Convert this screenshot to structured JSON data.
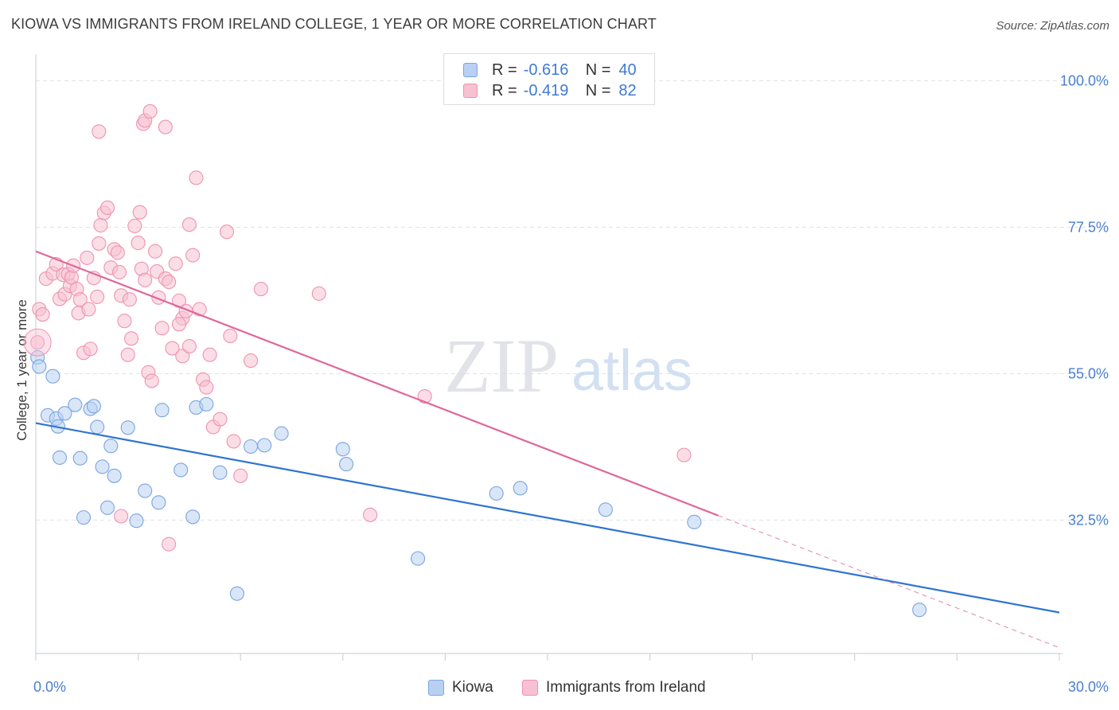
{
  "title": "KIOWA VS IMMIGRANTS FROM IRELAND COLLEGE, 1 YEAR OR MORE CORRELATION CHART",
  "source": "Source: ZipAtlas.com",
  "watermark": {
    "zip": "ZIP",
    "atlas": "atlas"
  },
  "legend": {
    "kiowa": {
      "r_label": "R =",
      "r_value": "-0.616",
      "n_label": "N =",
      "n_value": "40"
    },
    "ireland": {
      "r_label": "R =",
      "r_value": "-0.419",
      "n_label": "N =",
      "n_value": "82"
    }
  },
  "bottom_legend": {
    "kiowa": "Kiowa",
    "ireland": "Immigrants from Ireland"
  },
  "colors": {
    "kiowa_fill": "#b8d1f3",
    "kiowa_stroke": "#7aa5e0",
    "kiowa_line": "#2f74d0",
    "ireland_fill": "#f7c1d2",
    "ireland_stroke": "#ee93b0",
    "ireland_line": "#e0679a",
    "tick": "#4a7fd0",
    "grid": "#dde3ea"
  },
  "chart_data": {
    "type": "scatter",
    "title": "KIOWA VS IMMIGRANTS FROM IRELAND COLLEGE, 1 YEAR OR MORE CORRELATION CHART",
    "xlabel": "",
    "ylabel": "College, 1 year or more",
    "xlim": [
      0,
      30
    ],
    "ylim": [
      12,
      103
    ],
    "x_tick_labels": [
      "0.0%",
      "30.0%"
    ],
    "y_ticks": [
      32.5,
      55.0,
      77.5,
      100.0
    ],
    "y_tick_labels": [
      "32.5%",
      "55.0%",
      "77.5%",
      "100.0%"
    ],
    "grid": true,
    "series": [
      {
        "name": "Kiowa",
        "r": -0.616,
        "n": 40,
        "trend": {
          "x": [
            0,
            30
          ],
          "y": [
            47.4,
            18.3
          ]
        },
        "points": [
          [
            0.05,
            57.5
          ],
          [
            0.1,
            56.1
          ],
          [
            0.5,
            54.6
          ],
          [
            0.35,
            48.6
          ],
          [
            0.6,
            48.1
          ],
          [
            0.85,
            48.9
          ],
          [
            1.15,
            50.2
          ],
          [
            1.6,
            49.6
          ],
          [
            1.7,
            50.0
          ],
          [
            1.8,
            46.8
          ],
          [
            3.7,
            49.4
          ],
          [
            4.7,
            49.8
          ],
          [
            5.0,
            50.3
          ],
          [
            2.7,
            46.7
          ],
          [
            0.65,
            46.9
          ],
          [
            2.2,
            43.9
          ],
          [
            0.7,
            42.1
          ],
          [
            1.3,
            42.0
          ],
          [
            1.95,
            40.7
          ],
          [
            2.3,
            39.3
          ],
          [
            4.25,
            40.2
          ],
          [
            5.4,
            39.8
          ],
          [
            6.3,
            43.8
          ],
          [
            6.7,
            44.0
          ],
          [
            7.2,
            45.8
          ],
          [
            9.0,
            43.4
          ],
          [
            9.1,
            41.1
          ],
          [
            3.2,
            37.0
          ],
          [
            3.6,
            35.2
          ],
          [
            2.1,
            34.4
          ],
          [
            1.4,
            32.9
          ],
          [
            2.95,
            32.4
          ],
          [
            4.6,
            33.0
          ],
          [
            13.5,
            36.6
          ],
          [
            14.2,
            37.4
          ],
          [
            16.7,
            34.1
          ],
          [
            19.3,
            32.2
          ],
          [
            11.2,
            26.6
          ],
          [
            5.9,
            21.2
          ],
          [
            25.9,
            18.7
          ]
        ]
      },
      {
        "name": "Immigrants from Ireland",
        "r": -0.419,
        "n": 82,
        "trend": {
          "x": [
            0,
            20
          ],
          "y": [
            73.8,
            33.2
          ]
        },
        "trend_extension": {
          "x": [
            20,
            30
          ],
          "y": [
            33.2,
            12.9
          ]
        },
        "points": [
          [
            0.05,
            59.8
          ],
          [
            0.1,
            64.9
          ],
          [
            0.2,
            64.1
          ],
          [
            0.3,
            69.6
          ],
          [
            0.5,
            70.4
          ],
          [
            0.6,
            71.8
          ],
          [
            0.7,
            66.5
          ],
          [
            0.8,
            70.2
          ],
          [
            0.85,
            67.2
          ],
          [
            0.95,
            70.3
          ],
          [
            1.0,
            68.5
          ],
          [
            1.05,
            69.8
          ],
          [
            1.1,
            71.6
          ],
          [
            1.2,
            68.0
          ],
          [
            1.25,
            64.3
          ],
          [
            1.3,
            66.4
          ],
          [
            1.4,
            58.2
          ],
          [
            1.5,
            72.8
          ],
          [
            1.55,
            64.9
          ],
          [
            1.6,
            58.8
          ],
          [
            1.7,
            69.7
          ],
          [
            1.8,
            66.8
          ],
          [
            1.85,
            75.0
          ],
          [
            1.9,
            77.8
          ],
          [
            2.0,
            79.7
          ],
          [
            2.1,
            80.5
          ],
          [
            2.2,
            71.3
          ],
          [
            2.3,
            74.1
          ],
          [
            2.4,
            73.6
          ],
          [
            2.45,
            70.6
          ],
          [
            2.5,
            67.0
          ],
          [
            2.6,
            63.1
          ],
          [
            2.7,
            57.9
          ],
          [
            2.8,
            60.4
          ],
          [
            2.9,
            77.7
          ],
          [
            3.0,
            75.1
          ],
          [
            3.05,
            79.8
          ],
          [
            3.1,
            71.1
          ],
          [
            3.2,
            69.4
          ],
          [
            3.3,
            55.2
          ],
          [
            3.4,
            53.9
          ],
          [
            3.5,
            73.8
          ],
          [
            3.55,
            70.7
          ],
          [
            3.6,
            66.7
          ],
          [
            3.7,
            62.0
          ],
          [
            3.8,
            69.6
          ],
          [
            3.9,
            69.1
          ],
          [
            4.0,
            58.9
          ],
          [
            4.1,
            71.9
          ],
          [
            4.2,
            66.2
          ],
          [
            4.3,
            63.5
          ],
          [
            4.4,
            64.6
          ],
          [
            4.5,
            77.9
          ],
          [
            4.6,
            73.2
          ],
          [
            4.7,
            85.1
          ],
          [
            4.8,
            64.9
          ],
          [
            4.9,
            54.1
          ],
          [
            5.0,
            52.9
          ],
          [
            5.2,
            46.8
          ],
          [
            5.4,
            48.0
          ],
          [
            5.6,
            76.8
          ],
          [
            5.8,
            44.6
          ],
          [
            6.0,
            39.3
          ],
          [
            6.3,
            57.0
          ],
          [
            6.6,
            68.0
          ],
          [
            1.85,
            92.2
          ],
          [
            3.15,
            93.4
          ],
          [
            3.2,
            93.9
          ],
          [
            3.35,
            95.3
          ],
          [
            3.8,
            92.9
          ],
          [
            4.2,
            62.6
          ],
          [
            4.3,
            57.7
          ],
          [
            4.5,
            59.2
          ],
          [
            5.1,
            57.9
          ],
          [
            2.5,
            33.1
          ],
          [
            3.9,
            28.8
          ],
          [
            5.7,
            60.8
          ],
          [
            8.3,
            67.3
          ],
          [
            11.4,
            51.5
          ],
          [
            19.0,
            42.5
          ],
          [
            9.8,
            33.3
          ],
          [
            2.75,
            66.4
          ]
        ]
      }
    ]
  }
}
